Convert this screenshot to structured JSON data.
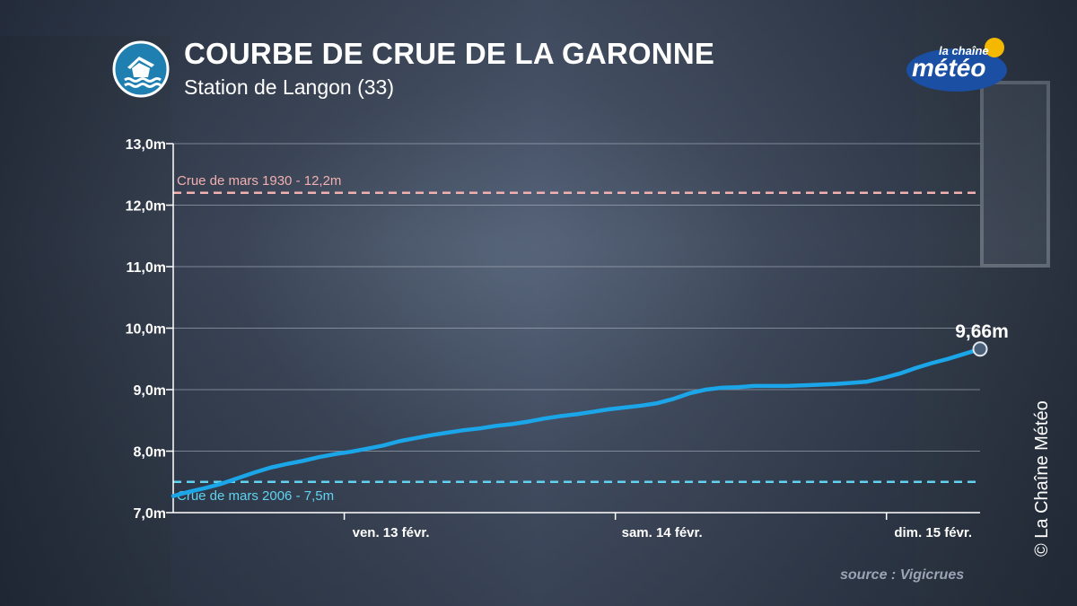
{
  "header": {
    "title": "COURBE DE CRUE DE LA GARONNE",
    "subtitle": "Station de Langon (33)",
    "icon": "flood-house-icon"
  },
  "logo": {
    "line1": "la chaîne",
    "line2": "météo",
    "colors": {
      "badge": "#1a4fa3",
      "sun": "#f5b800"
    }
  },
  "source": "source : Vigicrues",
  "copyright": "© La Chaîne Météo",
  "colors": {
    "line": "#1aa6e8",
    "ref_1930": "#f2b0b0",
    "ref_2006": "#5fd3f0",
    "grid": "#b8c0cc",
    "text": "#ffffff"
  },
  "chart_data": {
    "type": "line",
    "title": "COURBE DE CRUE DE LA GARONNE",
    "subtitle": "Station de Langon (33)",
    "ylim": [
      7.0,
      13.0
    ],
    "yticks": [
      7.0,
      8.0,
      9.0,
      10.0,
      11.0,
      12.0,
      13.0
    ],
    "ytick_labels": [
      "7,0m",
      "8,0m",
      "9,0m",
      "10,0m",
      "11,0m",
      "12,0m",
      "13,0m"
    ],
    "xlim": [
      0,
      1
    ],
    "xticks": [
      {
        "x": 0.212,
        "label": "ven. 13 févr."
      },
      {
        "x": 0.548,
        "label": "sam. 14 févr."
      },
      {
        "x": 0.884,
        "label": "dim. 15 févr."
      }
    ],
    "grid": true,
    "reference_lines": [
      {
        "label": "Crue de mars 1930 - 12,2m",
        "value": 12.2
      },
      {
        "label": "Crue de mars 2006 - 7,5m",
        "value": 7.5
      }
    ],
    "series": [
      {
        "x": [
          0,
          0.02,
          0.04,
          0.06,
          0.08,
          0.1,
          0.12,
          0.14,
          0.16,
          0.18,
          0.2,
          0.22,
          0.24,
          0.26,
          0.28,
          0.3,
          0.32,
          0.34,
          0.36,
          0.38,
          0.4,
          0.42,
          0.44,
          0.46,
          0.48,
          0.5,
          0.52,
          0.54,
          0.56,
          0.58,
          0.6,
          0.62,
          0.64,
          0.66,
          0.68,
          0.7,
          0.72,
          0.74,
          0.76,
          0.78,
          0.8,
          0.82,
          0.84,
          0.86,
          0.88,
          0.9,
          0.92,
          0.94,
          0.96,
          0.98,
          1.0
        ],
        "values": [
          7.27,
          7.34,
          7.4,
          7.47,
          7.56,
          7.65,
          7.73,
          7.79,
          7.84,
          7.9,
          7.95,
          7.99,
          8.04,
          8.09,
          8.16,
          8.21,
          8.26,
          8.3,
          8.34,
          8.37,
          8.41,
          8.44,
          8.48,
          8.53,
          8.57,
          8.6,
          8.64,
          8.68,
          8.71,
          8.74,
          8.78,
          8.85,
          8.94,
          9.0,
          9.03,
          9.04,
          9.06,
          9.06,
          9.06,
          9.07,
          9.08,
          9.09,
          9.11,
          9.13,
          9.19,
          9.26,
          9.35,
          9.43,
          9.5,
          9.58,
          9.66
        ]
      }
    ],
    "annotations": [
      {
        "label": "9,66m",
        "x": 1.0,
        "value": 9.66
      }
    ]
  }
}
